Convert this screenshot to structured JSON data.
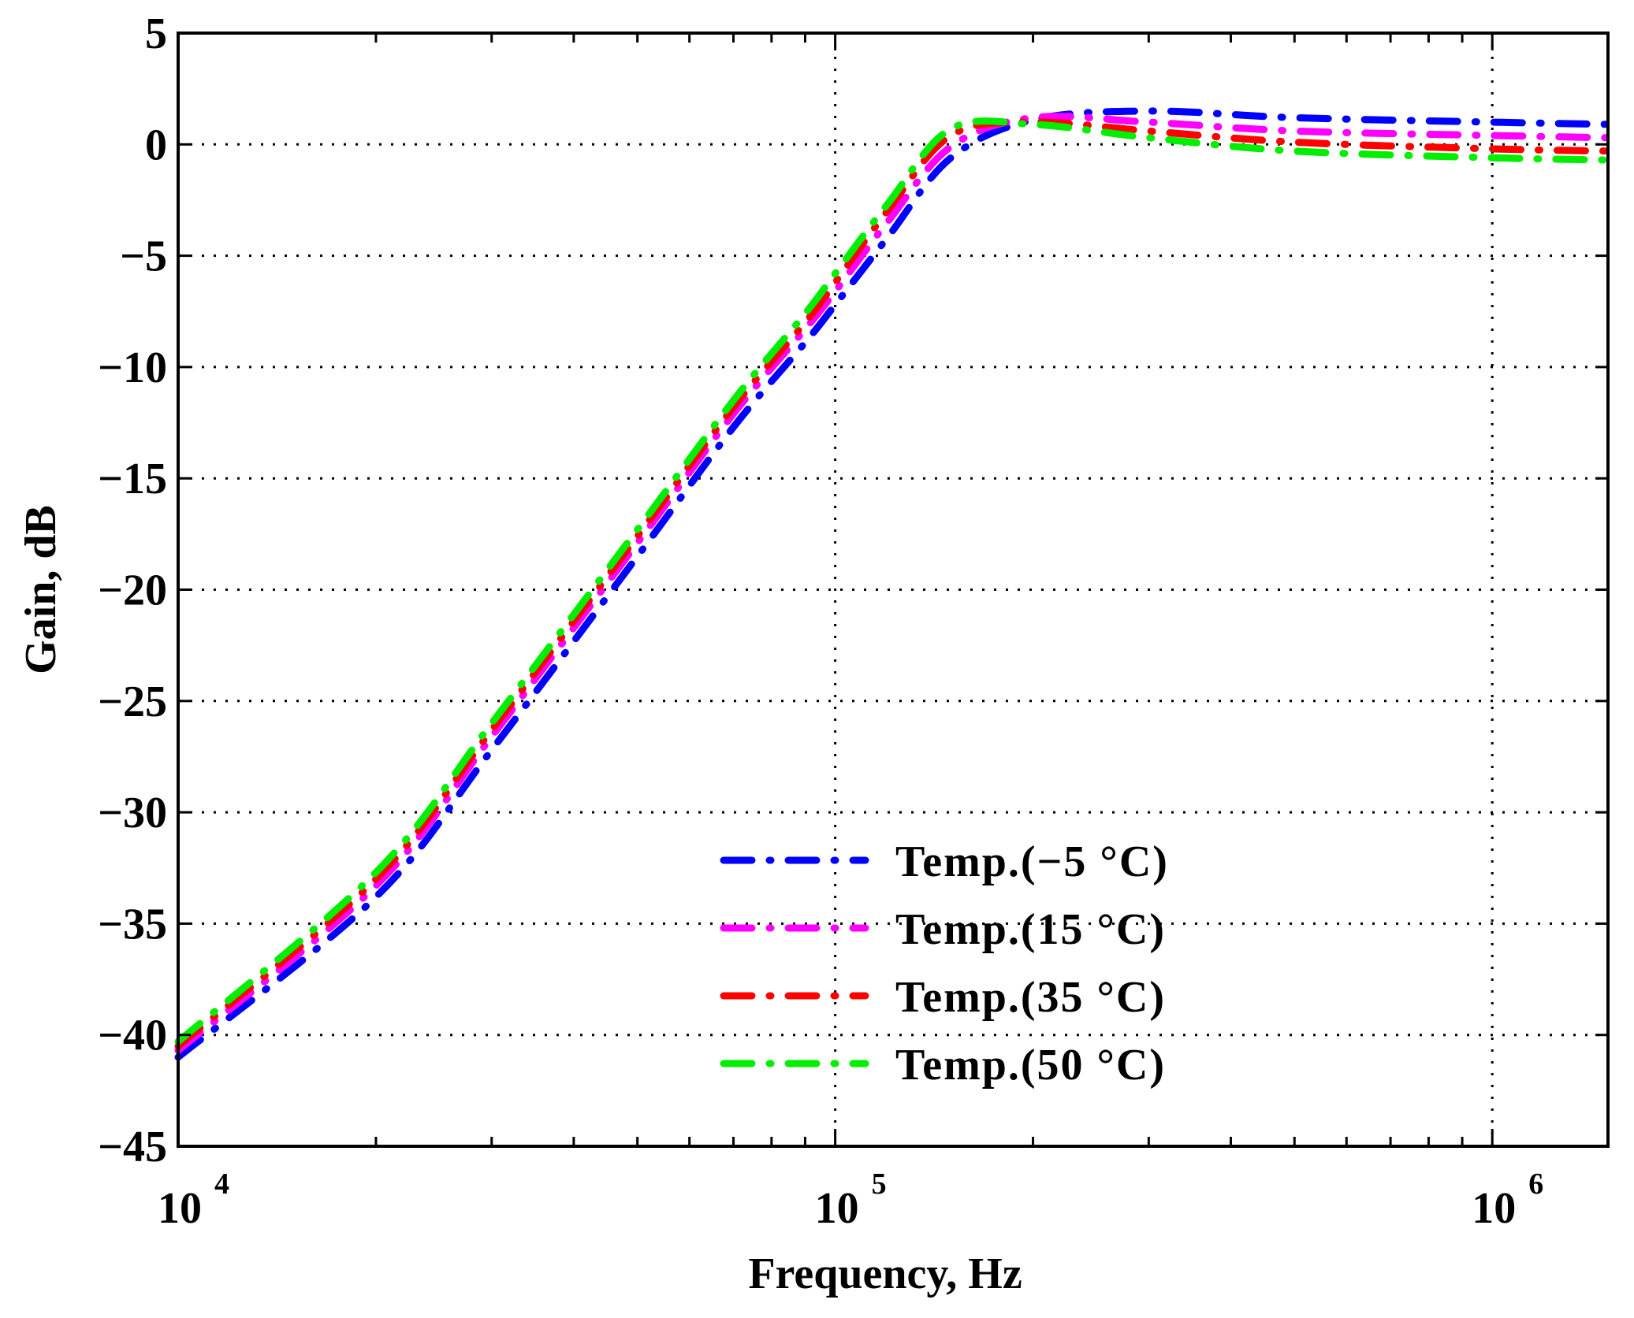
{
  "chart_data": {
    "type": "line",
    "title": "",
    "xlabel": "Frequency, Hz",
    "ylabel": "Gain, dB",
    "xscale": "log",
    "xlim": [
      10000,
      1500000
    ],
    "ylim": [
      -45,
      5
    ],
    "yticks": [
      5,
      0,
      -5,
      -10,
      -15,
      -20,
      -25,
      -30,
      -35,
      -40,
      -45
    ],
    "ytick_labels": [
      "5",
      "0",
      "−5",
      "−10",
      "−15",
      "−20",
      "−25",
      "−30",
      "−35",
      "−40",
      "−45"
    ],
    "xticks": [
      {
        "value": 10000,
        "base": "10",
        "exp": "4"
      },
      {
        "value": 100000,
        "base": "10",
        "exp": "5"
      },
      {
        "value": 1000000,
        "base": "10",
        "exp": "6"
      }
    ],
    "grid": true,
    "legend_position": "bottom-right",
    "series": [
      {
        "name": "Temp.(−5 °C)",
        "color": "#0000ff",
        "x": [
          10000,
          20000,
          30000,
          50000,
          70000,
          90000,
          100000,
          120000,
          150000,
          200000,
          300000,
          500000,
          1000000,
          1500000
        ],
        "y": [
          -41.0,
          -33.8,
          -27.2,
          -18.5,
          -12.7,
          -8.9,
          -7.2,
          -4.2,
          -0.6,
          1.1,
          1.5,
          1.2,
          1.0,
          0.9
        ]
      },
      {
        "name": "Temp.(15 °C)",
        "color": "#ff00ff",
        "x": [
          10000,
          20000,
          30000,
          50000,
          70000,
          90000,
          100000,
          120000,
          150000,
          200000,
          300000,
          500000,
          1000000,
          1500000
        ],
        "y": [
          -40.7,
          -33.3,
          -26.6,
          -17.9,
          -12.1,
          -8.3,
          -6.6,
          -3.5,
          -0.1,
          1.2,
          1.0,
          0.6,
          0.4,
          0.3
        ]
      },
      {
        "name": "Temp.(35 °C)",
        "color": "#ff0000",
        "x": [
          10000,
          20000,
          30000,
          50000,
          70000,
          90000,
          100000,
          120000,
          150000,
          200000,
          300000,
          500000,
          1000000,
          1500000
        ],
        "y": [
          -40.5,
          -33.0,
          -26.3,
          -17.6,
          -11.8,
          -8.0,
          -6.2,
          -3.0,
          0.4,
          1.0,
          0.6,
          0.1,
          -0.2,
          -0.3
        ]
      },
      {
        "name": "Temp.(50 °C)",
        "color": "#00ee00",
        "x": [
          10000,
          20000,
          30000,
          50000,
          70000,
          90000,
          100000,
          120000,
          150000,
          200000,
          300000,
          500000,
          1000000,
          1500000
        ],
        "y": [
          -40.3,
          -32.7,
          -26.0,
          -17.3,
          -11.5,
          -7.6,
          -5.8,
          -2.7,
          0.7,
          0.9,
          0.3,
          -0.3,
          -0.6,
          -0.7
        ]
      }
    ]
  }
}
